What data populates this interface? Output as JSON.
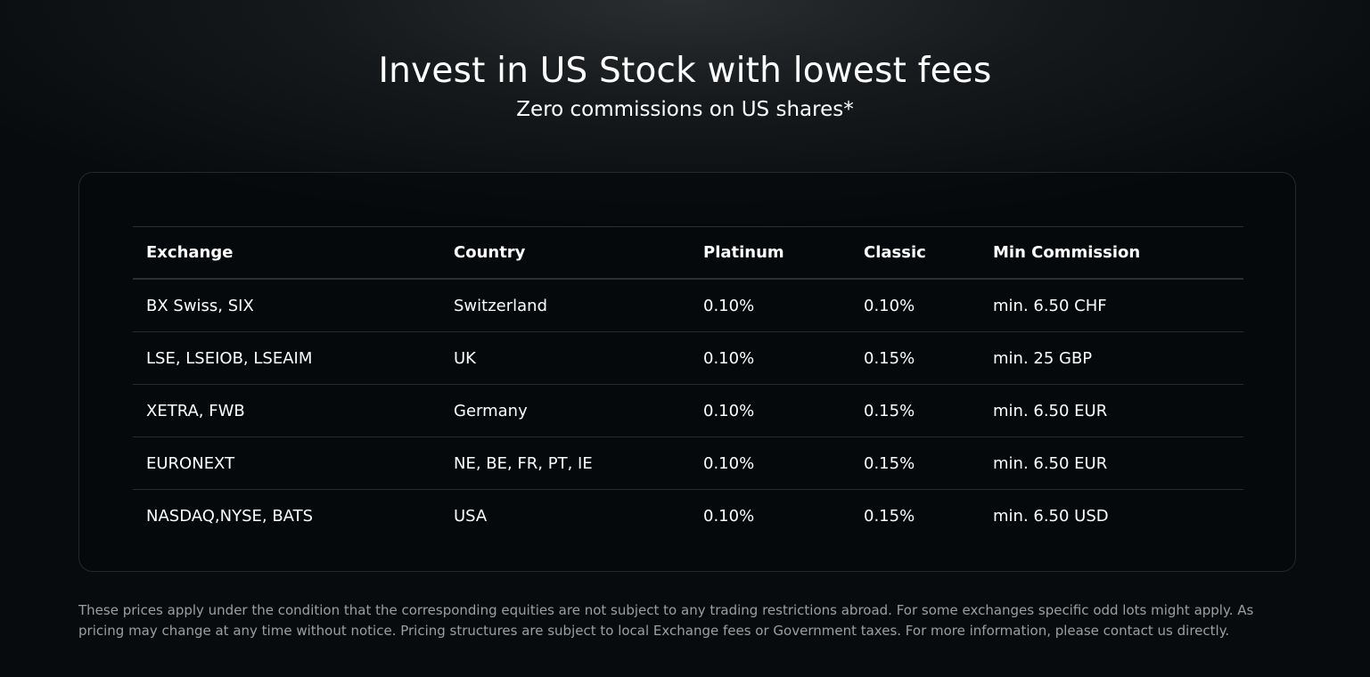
{
  "hero": {
    "title": "Invest in US Stock with lowest fees",
    "subtitle": "Zero commissions on US shares*"
  },
  "table": {
    "headers": {
      "exchange": "Exchange",
      "country": "Country",
      "platinum": "Platinum",
      "classic": "Classic",
      "min_commission": "Min Commission"
    },
    "rows": [
      {
        "exchange": "BX Swiss, SIX",
        "country": "Switzerland",
        "platinum": "0.10%",
        "classic": "0.10%",
        "min_commission": "min. 6.50 CHF"
      },
      {
        "exchange": "LSE, LSEIOB, LSEAIM",
        "country": "UK",
        "platinum": "0.10%",
        "classic": "0.15%",
        "min_commission": "min. 25 GBP"
      },
      {
        "exchange": "XETRA, FWB",
        "country": "Germany",
        "platinum": "0.10%",
        "classic": "0.15%",
        "min_commission": "min. 6.50 EUR"
      },
      {
        "exchange": "EURONEXT",
        "country": "NE, BE, FR, PT, IE",
        "platinum": "0.10%",
        "classic": "0.15%",
        "min_commission": "min. 6.50 EUR"
      },
      {
        "exchange": "NASDAQ,NYSE, BATS",
        "country": "USA",
        "platinum": "0.10%",
        "classic": "0.15%",
        "min_commission": "min. 6.50 USD"
      }
    ]
  },
  "disclaimer": "These prices apply under the condition that the corresponding equities are not subject to any trading restrictions abroad. For some exchanges specific odd lots might apply. As pricing may change at any time without notice. Pricing structures are subject to local Exchange fees or Government taxes. For more information, please contact us directly.",
  "colors": {
    "background": "#080b0d",
    "text": "#ffffff",
    "muted_text": "#9a9fa2",
    "border": "#262b2e"
  }
}
